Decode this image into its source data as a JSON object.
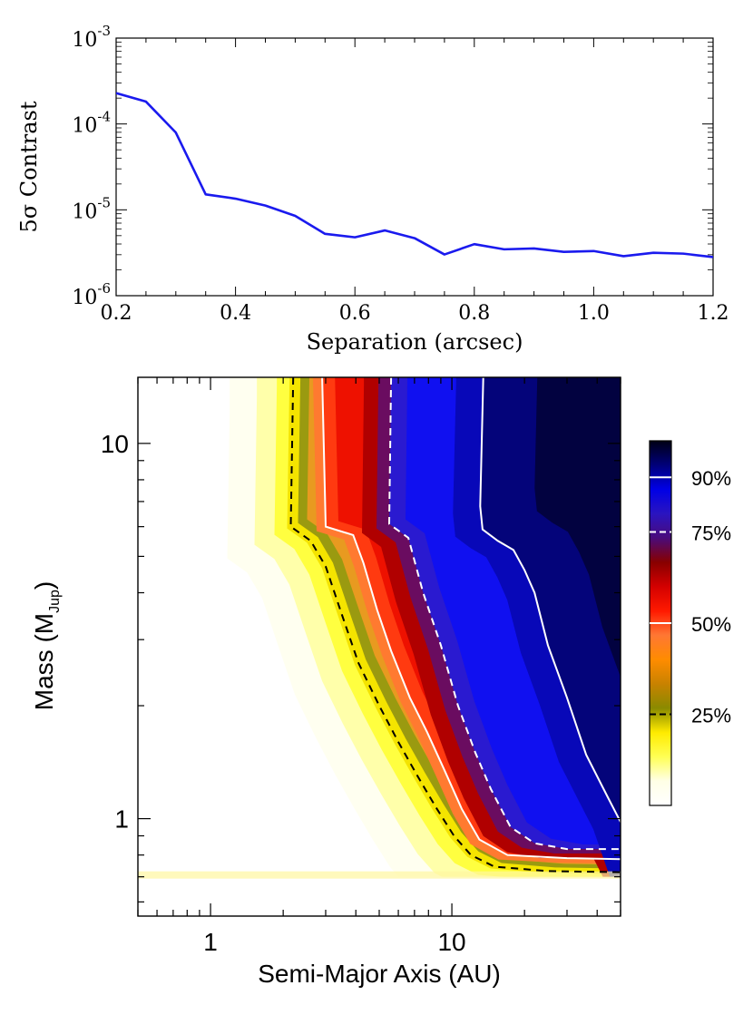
{
  "chart_data": [
    {
      "type": "line",
      "title": "",
      "xlabel": "Separation (arcsec)",
      "ylabel": "5σ Contrast",
      "xlim": [
        0.2,
        1.2
      ],
      "ylim_log10": [
        -6,
        -3
      ],
      "x_ticks": [
        0.2,
        0.4,
        0.6,
        0.8,
        1.0,
        1.2
      ],
      "x_tick_labels": [
        "0.2",
        "0.4",
        "0.6",
        "0.8",
        "1.0",
        "1.2"
      ],
      "y_ticks_log10": [
        -6,
        -5,
        -4,
        -3
      ],
      "y_tick_bases": [
        "10",
        "10",
        "10",
        "10"
      ],
      "y_tick_exps": [
        "-6",
        "-5",
        "-4",
        "-3"
      ],
      "series": [
        {
          "name": "contrast",
          "color": "#1a1aee",
          "x": [
            0.2,
            0.25,
            0.3,
            0.35,
            0.4,
            0.45,
            0.5,
            0.55,
            0.6,
            0.65,
            0.7,
            0.75,
            0.8,
            0.85,
            0.9,
            0.95,
            1.0,
            1.05,
            1.1,
            1.15,
            1.2
          ],
          "y_log10": [
            -3.64,
            -3.74,
            -4.1,
            -4.82,
            -4.87,
            -4.95,
            -5.07,
            -5.28,
            -5.32,
            -5.24,
            -5.33,
            -5.52,
            -5.4,
            -5.46,
            -5.45,
            -5.49,
            -5.48,
            -5.54,
            -5.5,
            -5.51,
            -5.55
          ]
        }
      ]
    },
    {
      "type": "heatmap",
      "title": "",
      "xlabel_prefix": "Semi-Major Axis (AU)",
      "ylabel_main": "Mass (M",
      "ylabel_sub": "Jup",
      "ylabel_close": ")",
      "xscale": "log",
      "yscale": "log",
      "xlim": [
        0.5,
        50
      ],
      "ylim": [
        0.55,
        15
      ],
      "x_ticks": [
        1,
        10
      ],
      "x_tick_labels": [
        "1",
        "10"
      ],
      "y_ticks": [
        1,
        10
      ],
      "y_tick_labels": [
        "1",
        "10"
      ],
      "contours": [
        {
          "level": "25%",
          "style": "dashed",
          "color": "#000000",
          "points": [
            [
              2.2,
              15
            ],
            [
              2.15,
              6
            ],
            [
              2.6,
              5.5
            ],
            [
              3,
              4.7
            ],
            [
              3.5,
              3.5
            ],
            [
              4.1,
              2.6
            ],
            [
              5,
              2.0
            ],
            [
              6,
              1.6
            ],
            [
              7.2,
              1.3
            ],
            [
              8.6,
              1.07
            ],
            [
              10.2,
              0.9
            ],
            [
              12,
              0.8
            ],
            [
              15,
              0.745
            ],
            [
              25,
              0.725
            ],
            [
              50,
              0.72
            ]
          ]
        },
        {
          "level": "50%",
          "style": "solid",
          "color": "#ffffff",
          "points": [
            [
              2.9,
              15
            ],
            [
              3.0,
              6
            ],
            [
              3.9,
              5.7
            ],
            [
              4.3,
              4.8
            ],
            [
              4.9,
              3.6
            ],
            [
              5.6,
              2.8
            ],
            [
              6.7,
              2.1
            ],
            [
              7.9,
              1.7
            ],
            [
              9.3,
              1.35
            ],
            [
              11,
              1.06
            ],
            [
              13,
              0.88
            ],
            [
              17,
              0.8
            ],
            [
              30,
              0.785
            ],
            [
              50,
              0.78
            ]
          ]
        },
        {
          "level": "75%",
          "style": "dashed",
          "color": "#ffffff",
          "points": [
            [
              5.6,
              15
            ],
            [
              5.5,
              6.1
            ],
            [
              6.6,
              5.6
            ],
            [
              7.6,
              4.0
            ],
            [
              9,
              2.9
            ],
            [
              10.6,
              2.0
            ],
            [
              12.5,
              1.5
            ],
            [
              14.5,
              1.2
            ],
            [
              17.5,
              0.95
            ],
            [
              22,
              0.86
            ],
            [
              30,
              0.83
            ],
            [
              50,
              0.83
            ]
          ]
        },
        {
          "level": "90%",
          "style": "solid",
          "color": "#ffffff",
          "points": [
            [
              13.5,
              15
            ],
            [
              13.1,
              6.8
            ],
            [
              13.4,
              5.9
            ],
            [
              15.5,
              5.5
            ],
            [
              18,
              5.2
            ],
            [
              20,
              4.6
            ],
            [
              22,
              4.0
            ],
            [
              25,
              2.9
            ],
            [
              30,
              2.1
            ],
            [
              36,
              1.48
            ],
            [
              44,
              1.15
            ],
            [
              50,
              0.98
            ]
          ]
        }
      ],
      "colorbar": {
        "labels": [
          "90%",
          "75%",
          "50%",
          "25%"
        ],
        "levels": [
          0.9,
          0.75,
          0.5,
          0.25
        ],
        "styles": [
          "solid",
          "dashed",
          "solid",
          "dashed"
        ],
        "colors": [
          "#ffffff",
          "#ffffe6",
          "#ffff55",
          "#ffeb00",
          "#8a8a00",
          "#c88200",
          "#ff8c00",
          "#ff7733",
          "#ff1a00",
          "#d40000",
          "#880000",
          "#4a0b7a",
          "#2a14c0",
          "#0000e6",
          "#00007a",
          "#000014"
        ]
      }
    }
  ]
}
